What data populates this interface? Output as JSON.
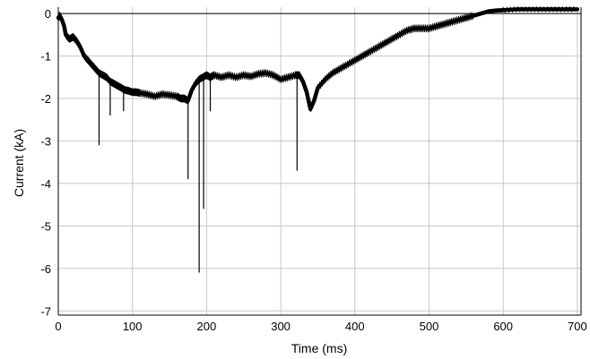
{
  "chart_data": {
    "type": "line",
    "title": "",
    "xlabel": "Time (ms)",
    "ylabel": "Current (kA)",
    "xlim": [
      0,
      705
    ],
    "ylim": [
      -7.1,
      0.15
    ],
    "grid": true,
    "x_ticks": [
      0,
      100,
      200,
      300,
      400,
      500,
      600,
      700
    ],
    "y_ticks": [
      0,
      -1,
      -2,
      -3,
      -4,
      -5,
      -6,
      -7
    ],
    "line_color": "#000000",
    "grid_color": "#c8c8c8",
    "series": [
      {
        "x": [
          0,
          2,
          5,
          8,
          10,
          15,
          20,
          25,
          30,
          35,
          40,
          45,
          50,
          55,
          60,
          65,
          70,
          75,
          80,
          85,
          90,
          95,
          100,
          105,
          110,
          120,
          130,
          140,
          150,
          160,
          165,
          170,
          175,
          180,
          185,
          190,
          195,
          200,
          205,
          210,
          220,
          230,
          240,
          250,
          260,
          270,
          280,
          290,
          300,
          310,
          320,
          325,
          330,
          335,
          340,
          345,
          350,
          360,
          370,
          380,
          390,
          400,
          410,
          420,
          430,
          440,
          450,
          460,
          470,
          480,
          490,
          500,
          510,
          520,
          530,
          540,
          550,
          560,
          570,
          580,
          590,
          600,
          620,
          640,
          660,
          680,
          700
        ],
        "values": [
          -0.1,
          -0.05,
          -0.15,
          -0.3,
          -0.5,
          -0.6,
          -0.55,
          -0.65,
          -0.8,
          -1.0,
          -1.1,
          -1.2,
          -1.3,
          -1.4,
          -1.45,
          -1.5,
          -1.6,
          -1.65,
          -1.7,
          -1.75,
          -1.8,
          -1.82,
          -1.85,
          -1.85,
          -1.87,
          -1.9,
          -1.95,
          -1.9,
          -1.92,
          -1.95,
          -2.0,
          -2.0,
          -2.05,
          -1.8,
          -1.65,
          -1.55,
          -1.5,
          -1.45,
          -1.5,
          -1.45,
          -1.5,
          -1.45,
          -1.5,
          -1.45,
          -1.48,
          -1.42,
          -1.4,
          -1.45,
          -1.55,
          -1.5,
          -1.45,
          -1.45,
          -1.6,
          -1.85,
          -2.25,
          -2.05,
          -1.75,
          -1.55,
          -1.4,
          -1.3,
          -1.2,
          -1.1,
          -1.0,
          -0.9,
          -0.8,
          -0.7,
          -0.6,
          -0.5,
          -0.4,
          -0.35,
          -0.35,
          -0.35,
          -0.3,
          -0.25,
          -0.2,
          -0.15,
          -0.1,
          -0.05,
          0.0,
          0.05,
          0.07,
          0.08,
          0.1,
          0.1,
          0.1,
          0.1,
          0.1
        ]
      }
    ],
    "spikes": [
      {
        "x": 55,
        "y": -3.1
      },
      {
        "x": 70,
        "y": -2.4
      },
      {
        "x": 88,
        "y": -2.3
      },
      {
        "x": 175,
        "y": -3.9
      },
      {
        "x": 190,
        "y": -6.1
      },
      {
        "x": 196,
        "y": -4.6
      },
      {
        "x": 205,
        "y": -2.3
      },
      {
        "x": 322,
        "y": -3.7
      }
    ]
  }
}
